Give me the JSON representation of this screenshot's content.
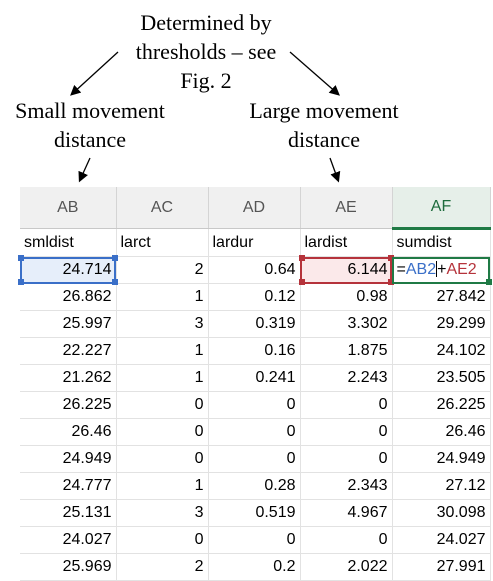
{
  "annotations": {
    "top_line1": "Determined by",
    "top_line2": "thresholds – see",
    "top_line3": "Fig. 2",
    "small_line1": "Small  movement",
    "small_line2": "distance",
    "large_line1": "Large movement",
    "large_line2": "distance"
  },
  "sheet": {
    "columns": [
      "AB",
      "AC",
      "AD",
      "AE",
      "AF"
    ],
    "active_column": "AF",
    "headers": [
      "smldist",
      "larct",
      "lardur",
      "lardist",
      "sumdist"
    ],
    "first_row": {
      "ab": "24.714",
      "ac": "2",
      "ad": "0.64",
      "ae": "6.144",
      "formula_eq": "=",
      "formula_ref1": "AB2",
      "formula_op": "+",
      "formula_ref2": "AE2"
    },
    "rows": [
      [
        "26.862",
        "1",
        "0.12",
        "0.98",
        "27.842"
      ],
      [
        "25.997",
        "3",
        "0.319",
        "3.302",
        "29.299"
      ],
      [
        "22.227",
        "1",
        "0.16",
        "1.875",
        "24.102"
      ],
      [
        "21.262",
        "1",
        "0.241",
        "2.243",
        "23.505"
      ],
      [
        "26.225",
        "0",
        "0",
        "0",
        "26.225"
      ],
      [
        "26.46",
        "0",
        "0",
        "0",
        "26.46"
      ],
      [
        "24.949",
        "0",
        "0",
        "0",
        "24.949"
      ],
      [
        "24.777",
        "1",
        "0.28",
        "2.343",
        "27.12"
      ],
      [
        "25.131",
        "3",
        "0.519",
        "4.967",
        "30.098"
      ],
      [
        "24.027",
        "0",
        "0",
        "0",
        "24.027"
      ],
      [
        "25.969",
        "2",
        "0.2",
        "2.022",
        "27.991"
      ]
    ],
    "colors": {
      "ref_blue": "#3a6fc8",
      "ref_red": "#b5333b",
      "active_green": "#1f7a45"
    }
  }
}
